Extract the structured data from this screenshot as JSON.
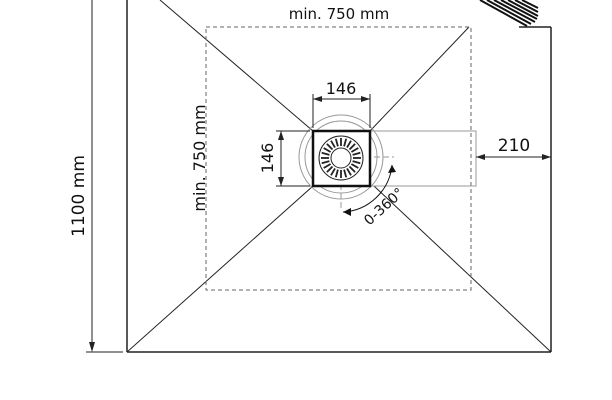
{
  "drawing": {
    "dimensions": {
      "total_height": "1100 mm",
      "min_width": "min. 750 mm",
      "min_height": "min. 750 mm",
      "grate_width": "146",
      "grate_height": "146",
      "outlet_offset": "210",
      "rotation_range": "0-360°"
    }
  }
}
